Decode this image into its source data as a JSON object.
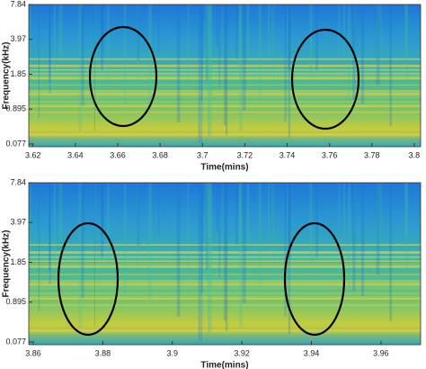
{
  "chart_data": [
    {
      "type": "spectrogram",
      "xlabel": "Time(mins)",
      "ylabel": "Frequency(kHz)",
      "xlim": [
        3.618,
        3.803
      ],
      "xticks": [
        3.62,
        3.64,
        3.66,
        3.68,
        3.7,
        3.72,
        3.74,
        3.76,
        3.78,
        3.8
      ],
      "ylim": [
        0.077,
        7.84
      ],
      "yticks": [
        0.077,
        0.895,
        1.85,
        3.97,
        7.84
      ]
    },
    {
      "type": "spectrogram",
      "xlabel": "Time(mins)",
      "ylabel": "Frequency(kHz)",
      "xlim": [
        3.8587,
        3.9714
      ],
      "xticks": [
        3.86,
        3.88,
        3.9,
        3.92,
        3.94,
        3.96
      ],
      "ylim": [
        0.077,
        7.84
      ],
      "yticks": [
        0.077,
        0.895,
        1.85,
        3.97,
        7.84
      ]
    }
  ]
}
